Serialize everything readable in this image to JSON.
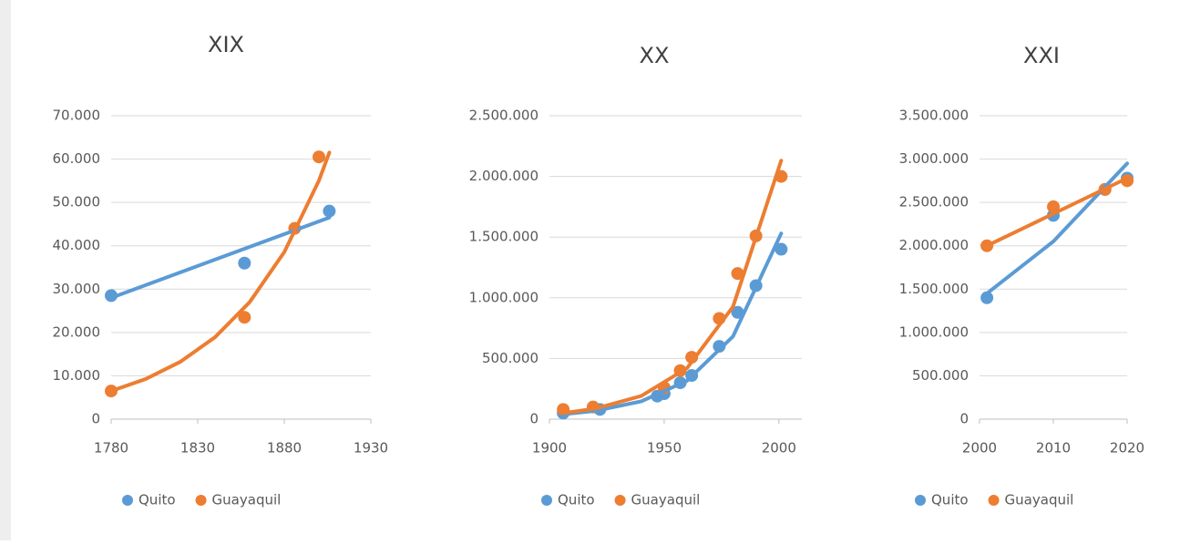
{
  "chart_data": [
    {
      "type": "scatter",
      "title": "XIX",
      "xlim": [
        1780,
        1930
      ],
      "xticks": [
        1780,
        1830,
        1880,
        1930
      ],
      "ylim": [
        0,
        70000
      ],
      "yticks": [
        0,
        {
          "value": 10000,
          "label": "10.000"
        },
        {
          "value": 20000,
          "label": "20.000"
        },
        {
          "value": 30000,
          "label": "30.000"
        },
        {
          "value": 40000,
          "label": "40.000"
        },
        {
          "value": 50000,
          "label": "50.000"
        },
        {
          "value": 60000,
          "label": "60.000"
        },
        {
          "value": 70000,
          "label": "70.000"
        }
      ],
      "grid": true,
      "legend": "bottom",
      "series": [
        {
          "name": "Quito",
          "color": "#5b9bd5",
          "x": [
            1780,
            1857,
            1906
          ],
          "values": [
            28500,
            36000,
            48000
          ],
          "trend": {
            "x": [
              1780,
              1906
            ],
            "values": [
              28000,
              46500
            ]
          }
        },
        {
          "name": "Guayaquil",
          "color": "#ed7d31",
          "x": [
            1780,
            1857,
            1886,
            1900
          ],
          "values": [
            6500,
            23500,
            44000,
            60500
          ],
          "trend": {
            "x": [
              1780,
              1800,
              1820,
              1840,
              1860,
              1880,
              1900,
              1906
            ],
            "values": [
              6500,
              9280,
              13250,
              18910,
              27000,
              38540,
              55030,
              61500
            ]
          }
        }
      ]
    },
    {
      "type": "scatter",
      "title": "XX",
      "xlim": [
        1900,
        2010
      ],
      "xticks": [
        1900,
        1950,
        2000
      ],
      "ylim": [
        0,
        2500000
      ],
      "yticks": [
        0,
        {
          "value": 500000,
          "label": "500.000"
        },
        {
          "value": 1000000,
          "label": "1.000.000"
        },
        {
          "value": 1500000,
          "label": "1.500.000"
        },
        {
          "value": 2000000,
          "label": "2.000.000"
        },
        {
          "value": 2500000,
          "label": "2.500.000"
        }
      ],
      "grid": true,
      "legend": "bottom",
      "series": [
        {
          "name": "Quito",
          "color": "#5b9bd5",
          "x": [
            1906,
            1922,
            1947,
            1950,
            1957,
            1962,
            1974,
            1982,
            1990,
            2001
          ],
          "values": [
            50000,
            80000,
            190000,
            210000,
            300000,
            360000,
            600000,
            880000,
            1100000,
            1400000
          ],
          "trend": {
            "x": [
              1906,
              1920,
              1940,
              1960,
              1980,
              2001
            ],
            "values": [
              40000,
              68400,
              147000,
              317000,
              682000,
              1530000
            ]
          }
        },
        {
          "name": "Guayaquil",
          "color": "#ed7d31",
          "x": [
            1906,
            1919,
            1950,
            1957,
            1962,
            1974,
            1982,
            1990,
            2001
          ],
          "values": [
            80000,
            100000,
            260000,
            400000,
            510000,
            830000,
            1200000,
            1510000,
            2000000
          ],
          "trend": {
            "x": [
              1906,
              1920,
              1940,
              1960,
              1980,
              2001
            ],
            "values": [
              50000,
              87000,
              191000,
              421000,
              927000,
              2130000
            ]
          }
        }
      ]
    },
    {
      "type": "scatter",
      "title": "XXI",
      "xlim": [
        2000,
        2020
      ],
      "xticks": [
        2000,
        2010,
        2020
      ],
      "ylim": [
        0,
        3500000
      ],
      "yticks": [
        0,
        {
          "value": 500000,
          "label": "500.000"
        },
        {
          "value": 1000000,
          "label": "1.000.000"
        },
        {
          "value": 1500000,
          "label": "1.500.000"
        },
        {
          "value": 2000000,
          "label": "2.000.000"
        },
        {
          "value": 2500000,
          "label": "2.500.000"
        },
        {
          "value": 3000000,
          "label": "3.000.000"
        },
        {
          "value": 3500000,
          "label": "3.500.000"
        }
      ],
      "grid": true,
      "legend": "bottom",
      "series": [
        {
          "name": "Quito",
          "color": "#5b9bd5",
          "x": [
            2001,
            2010,
            2017,
            2020
          ],
          "values": [
            1400000,
            2350000,
            2650000,
            2780000
          ],
          "trend": {
            "x": [
              2001,
              2010,
              2020
            ],
            "values": [
              1450000,
              2050000,
              2950000
            ]
          }
        },
        {
          "name": "Guayaquil",
          "color": "#ed7d31",
          "x": [
            2001,
            2010,
            2017,
            2020
          ],
          "values": [
            2000000,
            2450000,
            2650000,
            2750000
          ],
          "trend": {
            "x": [
              2001,
              2020
            ],
            "values": [
              2000000,
              2780000
            ]
          }
        }
      ]
    }
  ]
}
